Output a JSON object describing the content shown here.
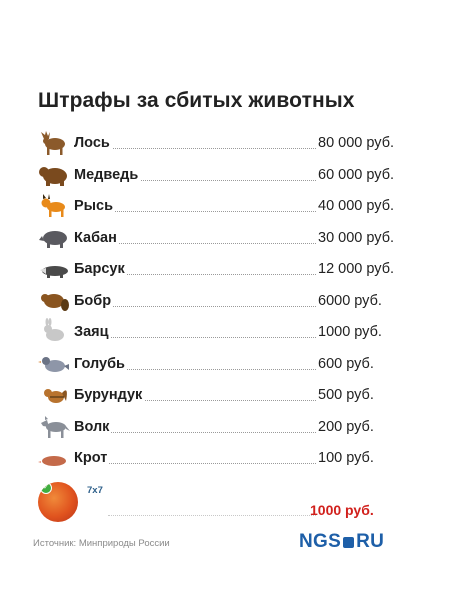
{
  "title": "Штрафы за сбитых животных",
  "animals": [
    {
      "name": "Лось",
      "price": "80 000 руб.",
      "icon": "moose-icon",
      "color": "#8b5a2b"
    },
    {
      "name": "Медведь",
      "price": "60 000 руб.",
      "icon": "bear-icon",
      "color": "#7a4a1e"
    },
    {
      "name": "Рысь",
      "price": "40 000 руб.",
      "icon": "lynx-icon",
      "color": "#e88a1a"
    },
    {
      "name": "Кабан",
      "price": "30 000 руб.",
      "icon": "boar-icon",
      "color": "#5a5a60"
    },
    {
      "name": "Барсук",
      "price": "12 000 руб.",
      "icon": "badger-icon",
      "color": "#4a4a4a"
    },
    {
      "name": "Бобр",
      "price": "6000 руб.",
      "icon": "beaver-icon",
      "color": "#8a5520"
    },
    {
      "name": "Заяц",
      "price": "1000 руб.",
      "icon": "hare-icon",
      "color": "#c8c8c8"
    },
    {
      "name": "Голубь",
      "price": "600 руб.",
      "icon": "pigeon-icon",
      "color": "#8e96a8"
    },
    {
      "name": "Бурундук",
      "price": "500 руб.",
      "icon": "chipmunk-icon",
      "color": "#b8732e"
    },
    {
      "name": "Волк",
      "price": "200 руб.",
      "icon": "wolf-icon",
      "color": "#8a8f98"
    },
    {
      "name": "Крот",
      "price": "100 руб.",
      "icon": "mole-icon",
      "color": "#c46a4a"
    }
  ],
  "ad": {
    "tag": "7x7",
    "price": "1000 руб.",
    "price_color": "#d1201c"
  },
  "footer": {
    "source": "Источник: Минприроды России",
    "brand_left": "NGS",
    "brand_right": "RU",
    "brand_color": "#1e5fa8"
  }
}
